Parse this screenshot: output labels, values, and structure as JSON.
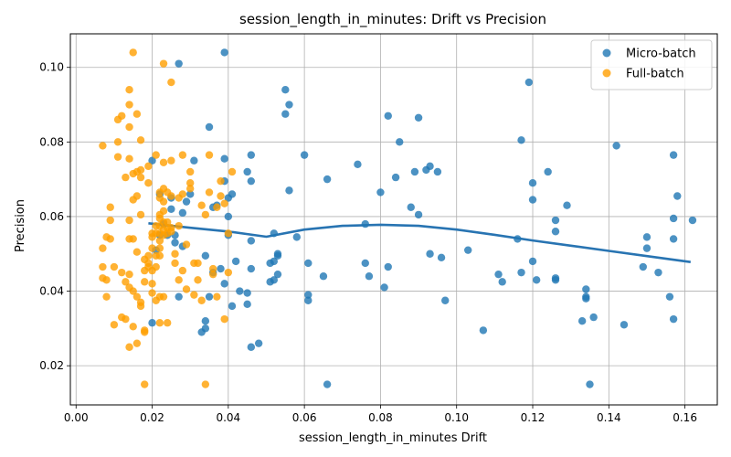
{
  "chart_data": {
    "type": "scatter",
    "title": "session_length_in_minutes: Drift vs Precision",
    "xlabel": "session_length_in_minutes Drift",
    "ylabel": "Precision",
    "xlim": [
      -0.0015,
      0.1685
    ],
    "ylim": [
      0.0095,
      0.109
    ],
    "xticks": [
      0.0,
      0.02,
      0.04,
      0.06,
      0.08,
      0.1,
      0.12,
      0.14,
      0.16
    ],
    "xtick_labels": [
      "0.00",
      "0.02",
      "0.04",
      "0.06",
      "0.08",
      "0.10",
      "0.12",
      "0.14",
      "0.16"
    ],
    "yticks": [
      0.02,
      0.04,
      0.06,
      0.08,
      0.1
    ],
    "ytick_labels": [
      "0.02",
      "0.04",
      "0.06",
      "0.08",
      "0.10"
    ],
    "grid": true,
    "legend_position": "top-right",
    "series": [
      {
        "name": "Micro-batch",
        "color": "#1f77b4",
        "points": [
          [
            0.02,
            0.0315
          ],
          [
            0.02,
            0.075
          ],
          [
            0.021,
            0.051
          ],
          [
            0.022,
            0.066
          ],
          [
            0.022,
            0.055
          ],
          [
            0.023,
            0.058
          ],
          [
            0.024,
            0.055
          ],
          [
            0.025,
            0.062
          ],
          [
            0.025,
            0.065
          ],
          [
            0.026,
            0.053
          ],
          [
            0.026,
            0.055
          ],
          [
            0.027,
            0.0385
          ],
          [
            0.027,
            0.101
          ],
          [
            0.028,
            0.052
          ],
          [
            0.028,
            0.061
          ],
          [
            0.029,
            0.064
          ],
          [
            0.03,
            0.066
          ],
          [
            0.031,
            0.075
          ],
          [
            0.033,
            0.029
          ],
          [
            0.034,
            0.0495
          ],
          [
            0.034,
            0.032
          ],
          [
            0.034,
            0.03
          ],
          [
            0.035,
            0.084
          ],
          [
            0.035,
            0.0385
          ],
          [
            0.036,
            0.045
          ],
          [
            0.036,
            0.0625
          ],
          [
            0.037,
            0.063
          ],
          [
            0.038,
            0.046
          ],
          [
            0.039,
            0.104
          ],
          [
            0.039,
            0.0755
          ],
          [
            0.039,
            0.0695
          ],
          [
            0.039,
            0.042
          ],
          [
            0.04,
            0.055
          ],
          [
            0.04,
            0.06
          ],
          [
            0.04,
            0.065
          ],
          [
            0.041,
            0.066
          ],
          [
            0.041,
            0.036
          ],
          [
            0.042,
            0.048
          ],
          [
            0.043,
            0.04
          ],
          [
            0.045,
            0.072
          ],
          [
            0.045,
            0.0395
          ],
          [
            0.045,
            0.0365
          ],
          [
            0.046,
            0.0765
          ],
          [
            0.046,
            0.0535
          ],
          [
            0.046,
            0.0695
          ],
          [
            0.046,
            0.046
          ],
          [
            0.046,
            0.025
          ],
          [
            0.048,
            0.026
          ],
          [
            0.051,
            0.0425
          ],
          [
            0.051,
            0.0475
          ],
          [
            0.052,
            0.048
          ],
          [
            0.052,
            0.0555
          ],
          [
            0.052,
            0.043
          ],
          [
            0.053,
            0.05
          ],
          [
            0.053,
            0.0445
          ],
          [
            0.053,
            0.0495
          ],
          [
            0.055,
            0.094
          ],
          [
            0.055,
            0.0875
          ],
          [
            0.056,
            0.09
          ],
          [
            0.056,
            0.067
          ],
          [
            0.058,
            0.0545
          ],
          [
            0.06,
            0.0765
          ],
          [
            0.061,
            0.0375
          ],
          [
            0.061,
            0.039
          ],
          [
            0.061,
            0.0475
          ],
          [
            0.065,
            0.044
          ],
          [
            0.066,
            0.07
          ],
          [
            0.066,
            0.015
          ],
          [
            0.074,
            0.074
          ],
          [
            0.076,
            0.058
          ],
          [
            0.076,
            0.0475
          ],
          [
            0.077,
            0.044
          ],
          [
            0.08,
            0.0665
          ],
          [
            0.081,
            0.041
          ],
          [
            0.082,
            0.087
          ],
          [
            0.082,
            0.0465
          ],
          [
            0.084,
            0.0705
          ],
          [
            0.085,
            0.08
          ],
          [
            0.088,
            0.0625
          ],
          [
            0.089,
            0.072
          ],
          [
            0.09,
            0.0865
          ],
          [
            0.09,
            0.0605
          ],
          [
            0.092,
            0.0725
          ],
          [
            0.093,
            0.05
          ],
          [
            0.093,
            0.0735
          ],
          [
            0.095,
            0.072
          ],
          [
            0.096,
            0.049
          ],
          [
            0.097,
            0.0375
          ],
          [
            0.103,
            0.051
          ],
          [
            0.107,
            0.0295
          ],
          [
            0.111,
            0.0445
          ],
          [
            0.112,
            0.0425
          ],
          [
            0.116,
            0.054
          ],
          [
            0.117,
            0.0805
          ],
          [
            0.117,
            0.045
          ],
          [
            0.119,
            0.096
          ],
          [
            0.12,
            0.0645
          ],
          [
            0.12,
            0.069
          ],
          [
            0.12,
            0.048
          ],
          [
            0.121,
            0.043
          ],
          [
            0.124,
            0.072
          ],
          [
            0.126,
            0.059
          ],
          [
            0.126,
            0.056
          ],
          [
            0.126,
            0.0435
          ],
          [
            0.126,
            0.043
          ],
          [
            0.129,
            0.063
          ],
          [
            0.133,
            0.032
          ],
          [
            0.134,
            0.0405
          ],
          [
            0.134,
            0.038
          ],
          [
            0.134,
            0.0385
          ],
          [
            0.135,
            0.015
          ],
          [
            0.136,
            0.033
          ],
          [
            0.142,
            0.079
          ],
          [
            0.144,
            0.031
          ],
          [
            0.149,
            0.0465
          ],
          [
            0.15,
            0.0545
          ],
          [
            0.15,
            0.0515
          ],
          [
            0.153,
            0.045
          ],
          [
            0.156,
            0.0385
          ],
          [
            0.157,
            0.0325
          ],
          [
            0.157,
            0.0765
          ],
          [
            0.157,
            0.0595
          ],
          [
            0.157,
            0.054
          ],
          [
            0.158,
            0.0655
          ],
          [
            0.162,
            0.059
          ]
        ]
      },
      {
        "name": "Full-batch",
        "color": "#ff9f00",
        "points": [
          [
            0.007,
            0.0465
          ],
          [
            0.007,
            0.0515
          ],
          [
            0.007,
            0.0435
          ],
          [
            0.007,
            0.079
          ],
          [
            0.008,
            0.0545
          ],
          [
            0.008,
            0.043
          ],
          [
            0.008,
            0.0385
          ],
          [
            0.009,
            0.059
          ],
          [
            0.009,
            0.0625
          ],
          [
            0.009,
            0.054
          ],
          [
            0.01,
            0.0465
          ],
          [
            0.01,
            0.031
          ],
          [
            0.011,
            0.08
          ],
          [
            0.011,
            0.076
          ],
          [
            0.011,
            0.086
          ],
          [
            0.012,
            0.087
          ],
          [
            0.012,
            0.045
          ],
          [
            0.012,
            0.033
          ],
          [
            0.013,
            0.0425
          ],
          [
            0.013,
            0.0705
          ],
          [
            0.013,
            0.0325
          ],
          [
            0.014,
            0.094
          ],
          [
            0.014,
            0.09
          ],
          [
            0.014,
            0.084
          ],
          [
            0.014,
            0.0755
          ],
          [
            0.014,
            0.059
          ],
          [
            0.014,
            0.054
          ],
          [
            0.014,
            0.0445
          ],
          [
            0.014,
            0.041
          ],
          [
            0.014,
            0.025
          ],
          [
            0.015,
            0.104
          ],
          [
            0.015,
            0.0715
          ],
          [
            0.015,
            0.0645
          ],
          [
            0.015,
            0.054
          ],
          [
            0.015,
            0.04
          ],
          [
            0.015,
            0.0305
          ],
          [
            0.016,
            0.0875
          ],
          [
            0.016,
            0.072
          ],
          [
            0.016,
            0.0655
          ],
          [
            0.016,
            0.0505
          ],
          [
            0.016,
            0.0385
          ],
          [
            0.016,
            0.026
          ],
          [
            0.017,
            0.0805
          ],
          [
            0.017,
            0.0725
          ],
          [
            0.017,
            0.0705
          ],
          [
            0.017,
            0.0605
          ],
          [
            0.017,
            0.037
          ],
          [
            0.017,
            0.036
          ],
          [
            0.018,
            0.0485
          ],
          [
            0.018,
            0.0455
          ],
          [
            0.018,
            0.0425
          ],
          [
            0.018,
            0.029
          ],
          [
            0.018,
            0.0295
          ],
          [
            0.018,
            0.015
          ],
          [
            0.019,
            0.0735
          ],
          [
            0.019,
            0.069
          ],
          [
            0.019,
            0.0495
          ],
          [
            0.019,
            0.0475
          ],
          [
            0.019,
            0.0465
          ],
          [
            0.02,
            0.0555
          ],
          [
            0.02,
            0.0545
          ],
          [
            0.02,
            0.0515
          ],
          [
            0.02,
            0.0455
          ],
          [
            0.02,
            0.042
          ],
          [
            0.02,
            0.0395
          ],
          [
            0.021,
            0.0765
          ],
          [
            0.021,
            0.0575
          ],
          [
            0.021,
            0.0555
          ],
          [
            0.021,
            0.0495
          ],
          [
            0.021,
            0.0465
          ],
          [
            0.021,
            0.0375
          ],
          [
            0.022,
            0.0665
          ],
          [
            0.022,
            0.065
          ],
          [
            0.022,
            0.0605
          ],
          [
            0.022,
            0.0595
          ],
          [
            0.022,
            0.0575
          ],
          [
            0.022,
            0.0555
          ],
          [
            0.022,
            0.0535
          ],
          [
            0.022,
            0.0515
          ],
          [
            0.022,
            0.0495
          ],
          [
            0.022,
            0.0385
          ],
          [
            0.022,
            0.0315
          ],
          [
            0.023,
            0.101
          ],
          [
            0.023,
            0.0745
          ],
          [
            0.023,
            0.0675
          ],
          [
            0.023,
            0.064
          ],
          [
            0.023,
            0.0615
          ],
          [
            0.023,
            0.0585
          ],
          [
            0.023,
            0.0565
          ],
          [
            0.023,
            0.055
          ],
          [
            0.023,
            0.0385
          ],
          [
            0.024,
            0.0665
          ],
          [
            0.024,
            0.0585
          ],
          [
            0.024,
            0.057
          ],
          [
            0.024,
            0.0555
          ],
          [
            0.024,
            0.0315
          ],
          [
            0.025,
            0.096
          ],
          [
            0.025,
            0.075
          ],
          [
            0.025,
            0.0655
          ],
          [
            0.025,
            0.057
          ],
          [
            0.025,
            0.056
          ],
          [
            0.026,
            0.0475
          ],
          [
            0.026,
            0.05
          ],
          [
            0.027,
            0.065
          ],
          [
            0.027,
            0.0575
          ],
          [
            0.027,
            0.043
          ],
          [
            0.028,
            0.0765
          ],
          [
            0.028,
            0.066
          ],
          [
            0.028,
            0.0455
          ],
          [
            0.029,
            0.0525
          ],
          [
            0.029,
            0.0405
          ],
          [
            0.03,
            0.072
          ],
          [
            0.03,
            0.069
          ],
          [
            0.03,
            0.0675
          ],
          [
            0.031,
            0.039
          ],
          [
            0.031,
            0.0475
          ],
          [
            0.032,
            0.0475
          ],
          [
            0.032,
            0.043
          ],
          [
            0.033,
            0.063
          ],
          [
            0.033,
            0.0375
          ],
          [
            0.034,
            0.015
          ],
          [
            0.034,
            0.0605
          ],
          [
            0.035,
            0.0665
          ],
          [
            0.035,
            0.0765
          ],
          [
            0.036,
            0.0445
          ],
          [
            0.036,
            0.046
          ],
          [
            0.037,
            0.0625
          ],
          [
            0.037,
            0.0385
          ],
          [
            0.038,
            0.0695
          ],
          [
            0.038,
            0.0655
          ],
          [
            0.039,
            0.0325
          ],
          [
            0.039,
            0.0635
          ],
          [
            0.04,
            0.045
          ],
          [
            0.04,
            0.0555
          ],
          [
            0.041,
            0.072
          ]
        ]
      }
    ],
    "trend_line": {
      "color": "#2874b2",
      "x": [
        0.019,
        0.03,
        0.04,
        0.05,
        0.06,
        0.07,
        0.08,
        0.09,
        0.1,
        0.11,
        0.12,
        0.13,
        0.14,
        0.15,
        0.1615
      ],
      "y": [
        0.0582,
        0.057,
        0.056,
        0.0546,
        0.0565,
        0.0575,
        0.0578,
        0.0575,
        0.0565,
        0.0551,
        0.0536,
        0.0522,
        0.0508,
        0.0494,
        0.0478
      ]
    }
  }
}
